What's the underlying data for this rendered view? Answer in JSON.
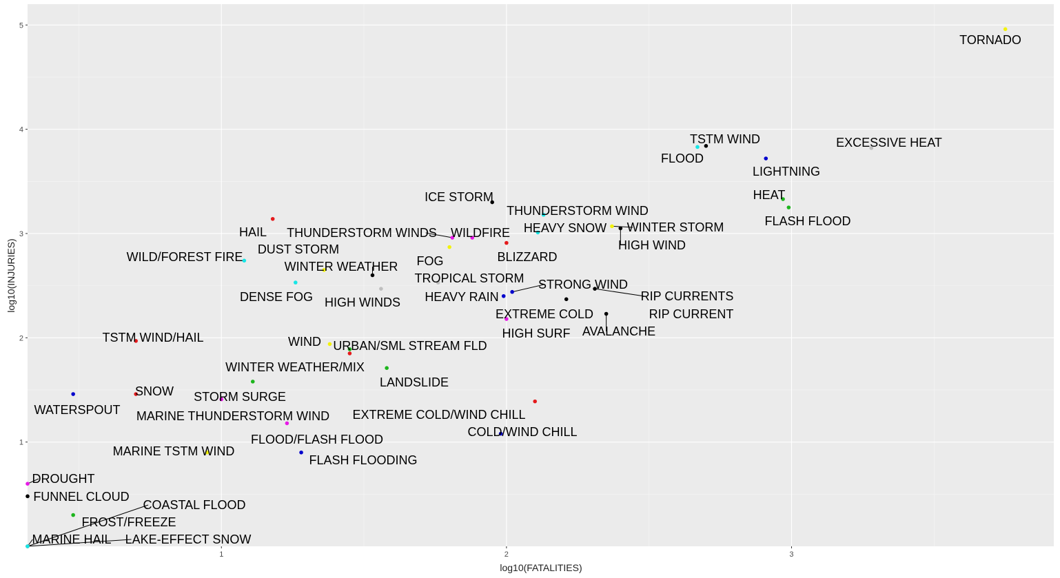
{
  "chart_data": {
    "type": "scatter",
    "title": "",
    "xlabel": "log10(FATALITIES)",
    "ylabel": "log10(INJURIES)",
    "xlim": [
      0.32,
      3.92
    ],
    "ylim": [
      0,
      5.2
    ],
    "x_ticks": [
      "1",
      "2",
      "3"
    ],
    "y_ticks": [
      "1",
      "2",
      "3",
      "4",
      "5"
    ],
    "grid": true,
    "colors": {
      "panel": "#ebebeb",
      "grid_major": "#ffffff",
      "grid_minor": "#f6f6f6",
      "black": "#000000",
      "red": "#e41a1c",
      "green": "#1db51d",
      "blue": "#0000cc",
      "cyan": "#17e6e6",
      "magenta": "#e61ae6",
      "yellow": "#f2f20d",
      "gray": "#bebebe"
    },
    "points": [
      {
        "label": "TORNADO",
        "x": 3.75,
        "y": 4.96,
        "color": "yellow"
      },
      {
        "label": "EXCESSIVE HEAT",
        "x": 3.28,
        "y": 3.82,
        "color": "gray"
      },
      {
        "label": "TSTM WIND",
        "x": 2.7,
        "y": 3.84,
        "color": "black"
      },
      {
        "label": "FLOOD",
        "x": 2.67,
        "y": 3.83,
        "color": "cyan"
      },
      {
        "label": "LIGHTNING",
        "x": 2.91,
        "y": 3.72,
        "color": "blue"
      },
      {
        "label": "HEAT",
        "x": 2.97,
        "y": 3.33,
        "color": "green"
      },
      {
        "label": "FLASH FLOOD",
        "x": 2.99,
        "y": 3.25,
        "color": "green"
      },
      {
        "label": "ICE STORM",
        "x": 1.95,
        "y": 3.3,
        "color": "black"
      },
      {
        "label": "THUNDERSTORM WIND",
        "x": 2.13,
        "y": 3.18,
        "color": "cyan"
      },
      {
        "label": "HEAVY SNOW",
        "x": 2.11,
        "y": 3.01,
        "color": "cyan"
      },
      {
        "label": "WINTER STORM",
        "x": 2.37,
        "y": 3.07,
        "color": "yellow"
      },
      {
        "label": "HIGH WIND",
        "x": 2.4,
        "y": 3.05,
        "color": "black"
      },
      {
        "label": "HAIL",
        "x": 1.18,
        "y": 3.14,
        "color": "red"
      },
      {
        "label": "THUNDERSTORM WINDS",
        "x": 1.81,
        "y": 2.96,
        "color": "magenta"
      },
      {
        "label": "WILDFIRE",
        "x": 1.88,
        "y": 2.96,
        "color": "magenta"
      },
      {
        "label": "FOG",
        "x": 1.8,
        "y": 2.87,
        "color": "yellow"
      },
      {
        "label": "BLIZZARD",
        "x": 2.0,
        "y": 2.91,
        "color": "red"
      },
      {
        "label": "WILD/FOREST FIRE",
        "x": 1.08,
        "y": 2.74,
        "color": "cyan"
      },
      {
        "label": "DUST STORM",
        "x": 1.36,
        "y": 2.65,
        "color": "yellow"
      },
      {
        "label": "WINTER WEATHER",
        "x": 1.53,
        "y": 2.6,
        "color": "black"
      },
      {
        "label": "TROPICAL STORM",
        "x": 1.76,
        "y": 2.53,
        "color": "gray"
      },
      {
        "label": "STRONG WIND",
        "x": 2.02,
        "y": 2.44,
        "color": "blue"
      },
      {
        "label": "DENSE FOG",
        "x": 1.26,
        "y": 2.53,
        "color": "cyan"
      },
      {
        "label": "HIGH WINDS",
        "x": 1.56,
        "y": 2.47,
        "color": "gray"
      },
      {
        "label": "HEAVY RAIN",
        "x": 1.99,
        "y": 2.4,
        "color": "blue"
      },
      {
        "label": "RIP CURRENTS",
        "x": 2.31,
        "y": 2.47,
        "color": "black"
      },
      {
        "label": "RIP CURRENT",
        "x": 2.57,
        "y": 2.37,
        "color": "gray"
      },
      {
        "label": "EXTREME COLD",
        "x": 2.21,
        "y": 2.37,
        "color": "black"
      },
      {
        "label": "AVALANCHE",
        "x": 2.35,
        "y": 2.23,
        "color": "black"
      },
      {
        "label": "HIGH SURF",
        "x": 2.0,
        "y": 2.18,
        "color": "magenta"
      },
      {
        "label": "TSTM WIND/HAIL",
        "x": 0.7,
        "y": 1.97,
        "color": "red"
      },
      {
        "label": "WIND",
        "x": 1.38,
        "y": 1.94,
        "color": "yellow"
      },
      {
        "label": "URBAN/SML STREAM FLD",
        "x": 1.45,
        "y": 1.89,
        "color": "green"
      },
      {
        "label": "WINTER WEATHER/MIX",
        "x": 1.45,
        "y": 1.85,
        "color": "red"
      },
      {
        "label": "LANDSLIDE",
        "x": 1.58,
        "y": 1.71,
        "color": "green"
      },
      {
        "label": "STORM SURGE",
        "x": 1.11,
        "y": 1.58,
        "color": "green"
      },
      {
        "label": "SNOW",
        "x": 0.7,
        "y": 1.46,
        "color": "red"
      },
      {
        "label": "WATERSPOUT",
        "x": 0.48,
        "y": 1.46,
        "color": "blue"
      },
      {
        "label": "MARINE THUNDERSTORM WIND",
        "x": 1.0,
        "y": 1.41,
        "color": "magenta"
      },
      {
        "label": "EXTREME COLD/WIND CHILL",
        "x": 2.1,
        "y": 1.39,
        "color": "red"
      },
      {
        "label": "FLOOD/FLASH FLOOD",
        "x": 1.23,
        "y": 1.18,
        "color": "magenta"
      },
      {
        "label": "COLD/WIND CHILL",
        "x": 1.98,
        "y": 1.08,
        "color": "blue"
      },
      {
        "label": "MARINE TSTM WIND",
        "x": 0.95,
        "y": 0.9,
        "color": "yellow"
      },
      {
        "label": "FLASH FLOODING",
        "x": 1.28,
        "y": 0.9,
        "color": "blue"
      },
      {
        "label": "DROUGHT",
        "x": 0.32,
        "y": 0.6,
        "color": "magenta"
      },
      {
        "label": "FUNNEL CLOUD",
        "x": 0.32,
        "y": 0.48,
        "color": "black"
      },
      {
        "label": "COASTAL FLOOD",
        "x": 0.32,
        "y": 0.0,
        "color": "black"
      },
      {
        "label": "FROST/FREEZE",
        "x": 0.48,
        "y": 0.3,
        "color": "green"
      },
      {
        "label": "MARINE HAIL",
        "x": 0.32,
        "y": 0.0,
        "color": "gray"
      },
      {
        "label": "LAKE-EFFECT SNOW",
        "x": 0.32,
        "y": 0.0,
        "color": "cyan"
      }
    ]
  }
}
